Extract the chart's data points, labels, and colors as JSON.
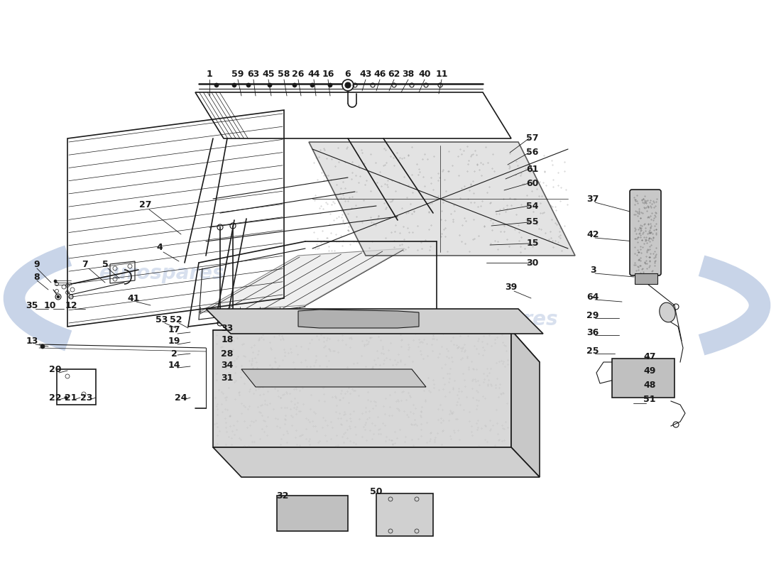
{
  "bg_color": "#ffffff",
  "fig_width": 11.0,
  "fig_height": 8.0,
  "dpi": 100
}
